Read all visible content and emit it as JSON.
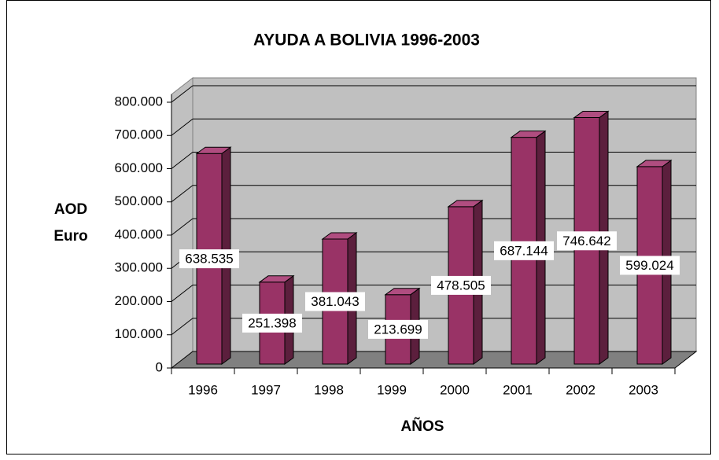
{
  "chart_data": {
    "type": "bar3d",
    "title": "AYUDA A BOLIVIA 1996-2003",
    "x_label": "AÑOS",
    "y_label": "AOD Euro",
    "categories": [
      "1996",
      "1997",
      "1998",
      "1999",
      "2000",
      "2001",
      "2002",
      "2003"
    ],
    "values": [
      638535,
      251398,
      381043,
      213699,
      478505,
      687144,
      746642,
      599024
    ],
    "value_labels": [
      "638.535",
      "251.398",
      "381.043",
      "213.699",
      "478.505",
      "687.144",
      "746.642",
      "599.024"
    ],
    "color": "#993366",
    "ylim": [
      0,
      800000
    ],
    "yticks": [
      0,
      {
        "value": 100000,
        "label": "100.000"
      },
      {
        "value": 200000,
        "label": "200.000"
      },
      {
        "value": 300000,
        "label": "300.000"
      },
      {
        "value": 400000,
        "label": "400.000"
      },
      {
        "value": 500000,
        "label": "500.000"
      },
      {
        "value": 600000,
        "label": "600.000"
      },
      {
        "value": 700000,
        "label": "700.000"
      },
      {
        "value": 800000,
        "label": "800.000"
      }
    ],
    "grid": true
  }
}
